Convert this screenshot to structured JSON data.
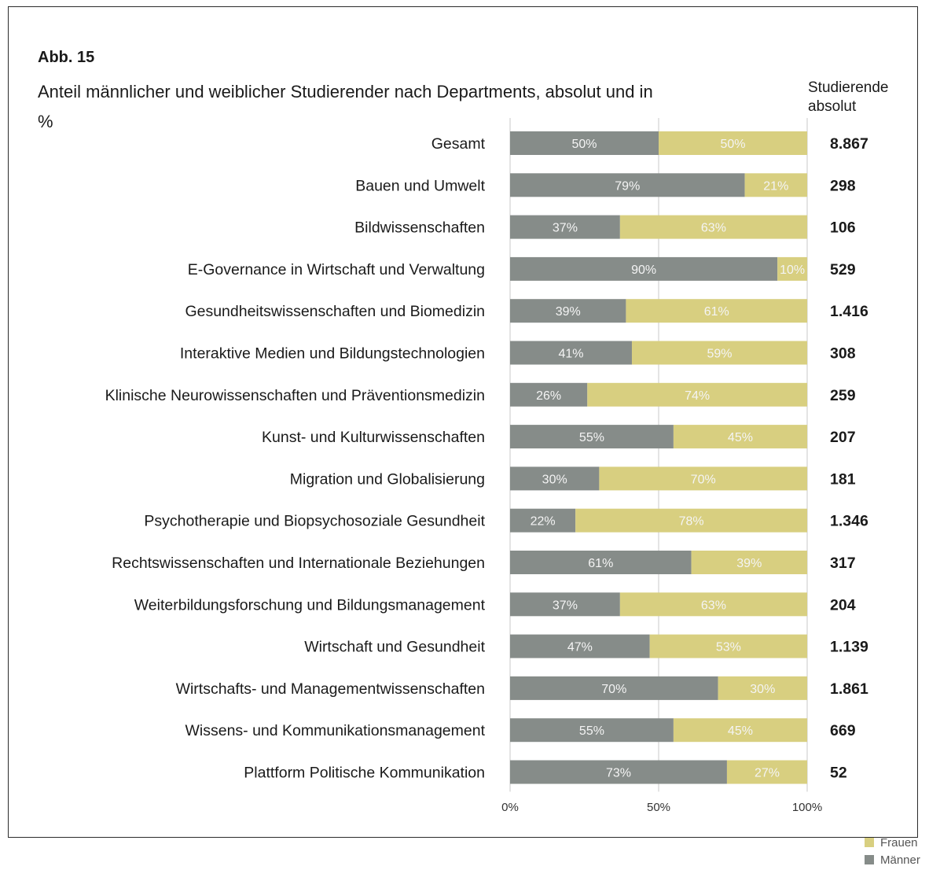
{
  "figure_label": "Abb. 15",
  "title": "Anteil männlicher und weiblicher Studierender nach Departments, absolut und in %",
  "abs_header": "Studierende absolut",
  "colors": {
    "maenner": "#868c89",
    "frauen": "#d8cf80",
    "grid": "#c9c9c9",
    "segment_text": "#f4f4f4"
  },
  "legend": [
    {
      "label": "Frauen",
      "color": "#d8cf80"
    },
    {
      "label": "Männer",
      "color": "#868c89"
    }
  ],
  "chart_data": {
    "type": "bar",
    "orientation": "horizontal",
    "stacked": true,
    "categories": [
      "Gesamt",
      "Bauen und Umwelt",
      "Bildwissenschaften",
      "E-Governance in Wirtschaft und Verwaltung",
      "Gesundheitswissenschaften und Biomedizin",
      "Interaktive Medien und Bildungstechnologien",
      "Klinische Neurowissenschaften und Präventionsmedizin",
      "Kunst- und Kulturwissenschaften",
      "Migration und Globalisierung",
      "Psychotherapie und Biopsychosoziale Gesundheit",
      "Rechtswissenschaften und Internationale Beziehungen",
      "Weiterbildungsforschung und Bildungsmanagement",
      "Wirtschaft und Gesundheit",
      "Wirtschafts- und Managementwissenschaften",
      "Wissens- und Kommunikationsmanagement",
      "Plattform Politische Kommunikation"
    ],
    "series": [
      {
        "name": "Männer",
        "values": [
          50,
          79,
          37,
          90,
          39,
          41,
          26,
          55,
          30,
          22,
          61,
          37,
          47,
          70,
          55,
          73
        ]
      },
      {
        "name": "Frauen",
        "values": [
          50,
          21,
          63,
          10,
          61,
          59,
          74,
          45,
          70,
          78,
          39,
          63,
          53,
          30,
          45,
          27
        ]
      }
    ],
    "absolute": [
      "8.867",
      "298",
      "106",
      "529",
      "1.416",
      "308",
      "259",
      "207",
      "181",
      "1.346",
      "317",
      "204",
      "1.139",
      "1.861",
      "669",
      "52"
    ],
    "xlim": [
      0,
      100
    ],
    "xticks": [
      "0%",
      "50%",
      "100%"
    ],
    "grid": true,
    "legend_position": "bottom-right"
  }
}
